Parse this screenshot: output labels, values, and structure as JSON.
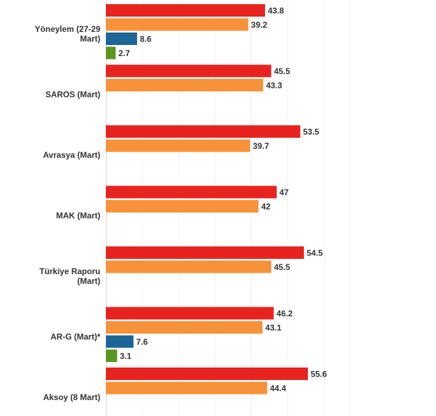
{
  "chart_data": {
    "type": "bar",
    "orientation": "horizontal",
    "title": "",
    "xlabel": "",
    "ylabel": "",
    "xlim": [
      0,
      70
    ],
    "grid": true,
    "legend": "none",
    "categories": [
      {
        "label_lines": [
          "Yöneylem (27-29",
          "Mart)"
        ]
      },
      {
        "label_lines": [
          "SAROS (Mart)"
        ]
      },
      {
        "label_lines": [
          "Avrasya (Mart)"
        ]
      },
      {
        "label_lines": [
          "MAK (Mart)"
        ]
      },
      {
        "label_lines": [
          "Türkiye Raporu",
          "(Mart)"
        ]
      },
      {
        "label_lines": [
          "AR-G (Mart)*"
        ]
      },
      {
        "label_lines": [
          "Aksoy (8 Mart)"
        ]
      }
    ],
    "series": [
      {
        "color": "#e8231f",
        "values": [
          {
            "v": 43.8,
            "t": "43.8"
          },
          {
            "v": 45.5,
            "t": "45.5"
          },
          {
            "v": 53.5,
            "t": "53.5"
          },
          {
            "v": 47,
            "t": "47"
          },
          {
            "v": 54.5,
            "t": "54.5"
          },
          {
            "v": 46.2,
            "t": "46.2"
          },
          {
            "v": 55.6,
            "t": "55.6"
          }
        ]
      },
      {
        "color": "#f7923a",
        "values": [
          {
            "v": 39.2,
            "t": "39.2"
          },
          {
            "v": 43.3,
            "t": "43.3"
          },
          {
            "v": 39.7,
            "t": "39.7"
          },
          {
            "v": 42,
            "t": "42"
          },
          {
            "v": 45.5,
            "t": "45.5"
          },
          {
            "v": 43.1,
            "t": "43.1"
          },
          {
            "v": 44.4,
            "t": "44.4"
          }
        ]
      },
      {
        "color": "#1d6696",
        "values": [
          {
            "v": 8.6,
            "t": "8.6"
          },
          null,
          null,
          null,
          null,
          {
            "v": 7.6,
            "t": "7.6"
          },
          null
        ]
      },
      {
        "color": "#5a961f",
        "values": [
          {
            "v": 2.7,
            "t": "2.7"
          },
          null,
          null,
          null,
          null,
          {
            "v": 3.1,
            "t": "3.1"
          },
          null
        ]
      }
    ]
  }
}
